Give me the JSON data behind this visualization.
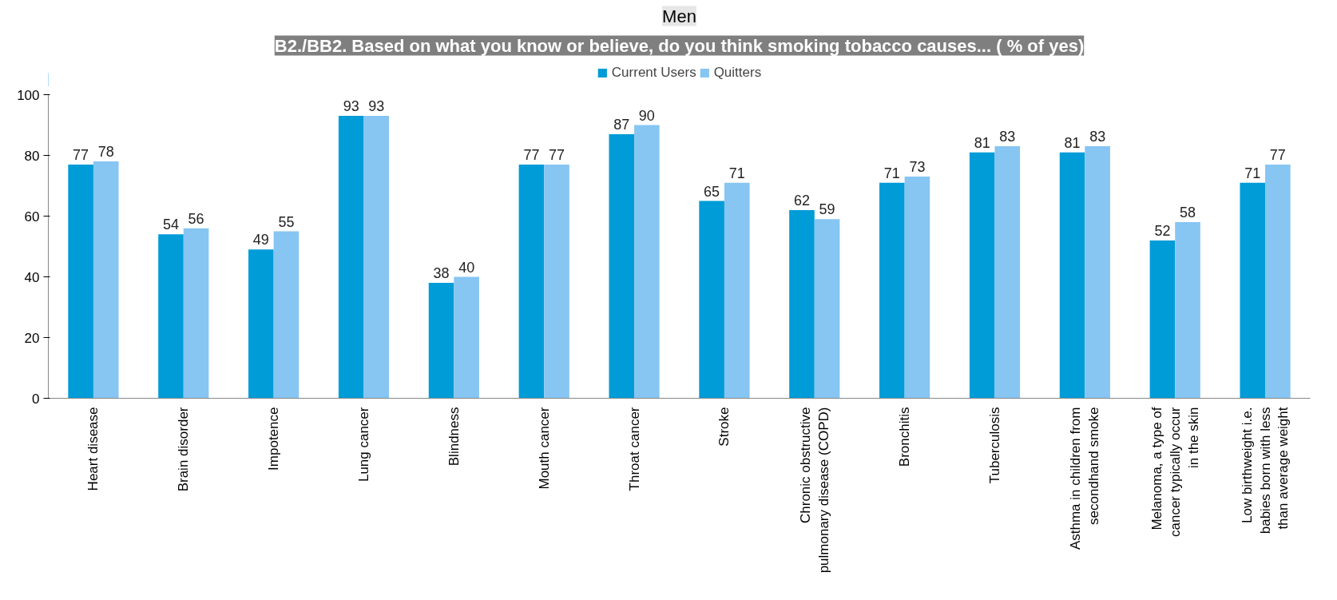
{
  "chart_data": {
    "type": "bar",
    "title": "B2./BB2. Based on what you know or believe, do you think smoking tobacco causes... ( % of yes)",
    "subtitle": "Men",
    "categories": [
      "Heart disease",
      "Brain disorder",
      "Impotence",
      "Lung cancer",
      "Blindness",
      "Mouth cancer",
      "Throat cancer",
      "Stroke",
      "Chronic obstructive pulmonary disease (COPD)",
      "Bronchitis",
      "Tuberculosis",
      "Asthma in children from secondhand smoke",
      "Melanoma, a type of cancer typically occur in the skin",
      "Low birthweight i.e. babies born with less than average weight"
    ],
    "series": [
      {
        "name": "Current Users",
        "color": "#009cd8",
        "values": [
          77,
          54,
          49,
          93,
          38,
          77,
          87,
          65,
          62,
          71,
          81,
          81,
          52,
          71
        ]
      },
      {
        "name": "Quitters",
        "color": "#87c5f2",
        "values": [
          78,
          56,
          55,
          93,
          40,
          77,
          90,
          71,
          59,
          73,
          83,
          83,
          58,
          77
        ]
      }
    ],
    "ylim": [
      0,
      100
    ],
    "yticks": [
      0,
      20,
      40,
      60,
      80,
      100
    ],
    "grid": false,
    "legend": "top",
    "data_labels": true
  }
}
